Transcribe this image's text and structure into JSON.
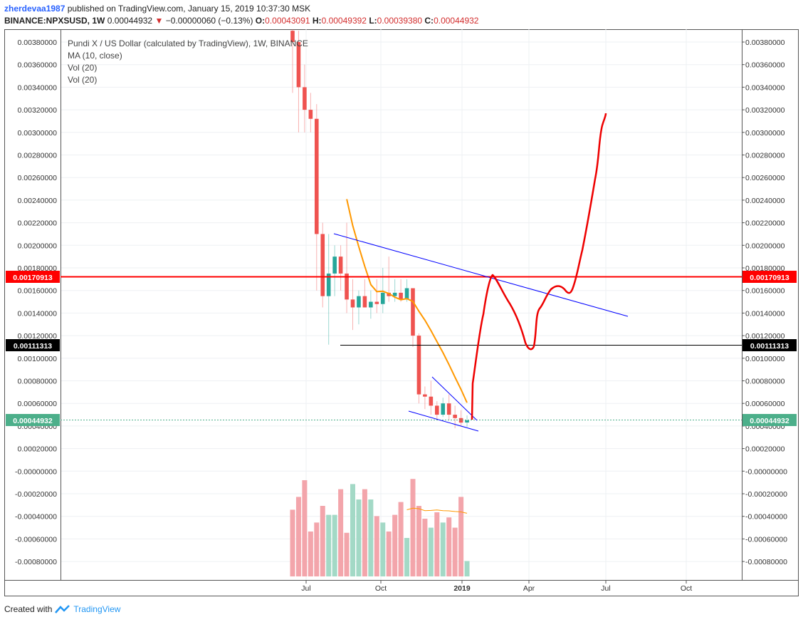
{
  "header": {
    "user": "zherdevaa1987",
    "published": "published on TradingView.com, January 15, 2019 10:37:30 MSK",
    "symbol": "BINANCE:NPXSUSD, 1W",
    "last": "0.00044932",
    "change_arrow": "▼",
    "change": "−0.00000060 (−0.13%)",
    "o_label": "O:",
    "o": "0.00043091",
    "h_label": "H:",
    "h": "0.00049392",
    "l_label": "L:",
    "l": "0.00039380",
    "c_label": "C:",
    "c": "0.00044932"
  },
  "legend": {
    "title": "Pundi X / US Dollar (calculated by TradingView), 1W, BINANCE",
    "ma": "MA (10, close)",
    "vol1": "Vol (20)",
    "vol2": "Vol (20)"
  },
  "footer": {
    "created_with": "Created with",
    "brand": "TradingView"
  },
  "colors": {
    "up": "#26a69a",
    "down": "#ef5350",
    "ma": "#ff9800",
    "trend": "#0000ff",
    "hline_red": "#ff0000",
    "hline_black": "#000000",
    "last_price": "#4caf8a"
  },
  "chart_data": {
    "type": "candlestick",
    "price_axis_labels": [
      "0.00380000",
      "0.00360000",
      "0.00340000",
      "0.00320000",
      "0.00300000",
      "0.00280000",
      "0.00260000",
      "0.00240000",
      "0.00220000",
      "0.00200000",
      "0.00180000",
      "0.00160000",
      "0.00140000",
      "0.00120000",
      "0.00100000",
      "0.00080000",
      "0.00060000",
      "0.00040000",
      "0.00020000",
      "-0.00000000",
      "-0.00020000",
      "-0.00040000",
      "-0.00060000",
      "-0.00080000"
    ],
    "x_axis_labels": [
      "Jul",
      "Oct",
      "2019",
      "Apr",
      "Jul",
      "Oct"
    ],
    "price_tags": [
      {
        "value": "0.00170913",
        "color": "#ff0000"
      },
      {
        "value": "0.00111313",
        "color": "#000000"
      },
      {
        "value": "0.00044932",
        "color": "#4caf8a"
      }
    ],
    "candles": [
      {
        "o": 0.0039,
        "h": 0.0042,
        "l": 0.00335,
        "c": 0.0038
      },
      {
        "o": 0.0038,
        "h": 0.0039,
        "l": 0.003,
        "c": 0.0034
      },
      {
        "o": 0.0034,
        "h": 0.0036,
        "l": 0.003,
        "c": 0.0032
      },
      {
        "o": 0.0032,
        "h": 0.00335,
        "l": 0.003,
        "c": 0.00312
      },
      {
        "o": 0.00312,
        "h": 0.00325,
        "l": 0.0016,
        "c": 0.0021
      },
      {
        "o": 0.0021,
        "h": 0.0022,
        "l": 0.00145,
        "c": 0.00155
      },
      {
        "o": 0.00155,
        "h": 0.0021,
        "l": 0.00112,
        "c": 0.00175
      },
      {
        "o": 0.00175,
        "h": 0.002,
        "l": 0.00155,
        "c": 0.0019
      },
      {
        "o": 0.0019,
        "h": 0.002,
        "l": 0.0016,
        "c": 0.00175
      },
      {
        "o": 0.00175,
        "h": 0.0022,
        "l": 0.0014,
        "c": 0.00152
      },
      {
        "o": 0.00152,
        "h": 0.0017,
        "l": 0.00125,
        "c": 0.00145
      },
      {
        "o": 0.00145,
        "h": 0.0016,
        "l": 0.0013,
        "c": 0.00155
      },
      {
        "o": 0.00155,
        "h": 0.0017,
        "l": 0.00145,
        "c": 0.00145
      },
      {
        "o": 0.00145,
        "h": 0.0016,
        "l": 0.00135,
        "c": 0.0015
      },
      {
        "o": 0.0015,
        "h": 0.0017,
        "l": 0.0014,
        "c": 0.00148
      },
      {
        "o": 0.00148,
        "h": 0.0018,
        "l": 0.0014,
        "c": 0.00158
      },
      {
        "o": 0.00158,
        "h": 0.0019,
        "l": 0.0015,
        "c": 0.00155
      },
      {
        "o": 0.00155,
        "h": 0.0017,
        "l": 0.0015,
        "c": 0.00158
      },
      {
        "o": 0.00158,
        "h": 0.0017,
        "l": 0.0015,
        "c": 0.00152
      },
      {
        "o": 0.00152,
        "h": 0.0017,
        "l": 0.0015,
        "c": 0.00162
      },
      {
        "o": 0.00162,
        "h": 0.0016,
        "l": 0.0011,
        "c": 0.0012
      },
      {
        "o": 0.0012,
        "h": 0.00122,
        "l": 0.0006,
        "c": 0.00068
      },
      {
        "o": 0.00068,
        "h": 0.00075,
        "l": 0.00055,
        "c": 0.00066
      },
      {
        "o": 0.00066,
        "h": 0.0008,
        "l": 0.0005,
        "c": 0.00058
      },
      {
        "o": 0.00058,
        "h": 0.00062,
        "l": 0.00045,
        "c": 0.0005
      },
      {
        "o": 0.0005,
        "h": 0.00065,
        "l": 0.00048,
        "c": 0.0006
      },
      {
        "o": 0.0006,
        "h": 0.00068,
        "l": 0.00045,
        "c": 0.0005
      },
      {
        "o": 0.0005,
        "h": 0.00058,
        "l": 0.00038,
        "c": 0.00047
      },
      {
        "o": 0.00047,
        "h": 0.00054,
        "l": 0.0004,
        "c": 0.00043
      },
      {
        "o": 0.00043091,
        "h": 0.00049392,
        "l": 0.0003938,
        "c": 0.00044932
      }
    ],
    "volume_up": [
      false,
      false,
      false,
      false,
      false,
      false,
      true,
      true,
      false,
      false,
      true,
      true,
      false,
      true,
      false,
      true,
      false,
      false,
      false,
      true,
      false,
      false,
      false,
      true,
      false,
      true,
      false,
      false,
      false,
      true
    ],
    "volume_rel": [
      0.52,
      0.62,
      0.75,
      0.35,
      0.42,
      0.55,
      0.48,
      0.48,
      0.68,
      0.34,
      0.72,
      0.6,
      0.68,
      0.6,
      0.47,
      0.42,
      0.35,
      0.48,
      0.58,
      0.3,
      0.76,
      0.55,
      0.45,
      0.38,
      0.5,
      0.42,
      0.46,
      0.38,
      0.62,
      0.12
    ]
  }
}
